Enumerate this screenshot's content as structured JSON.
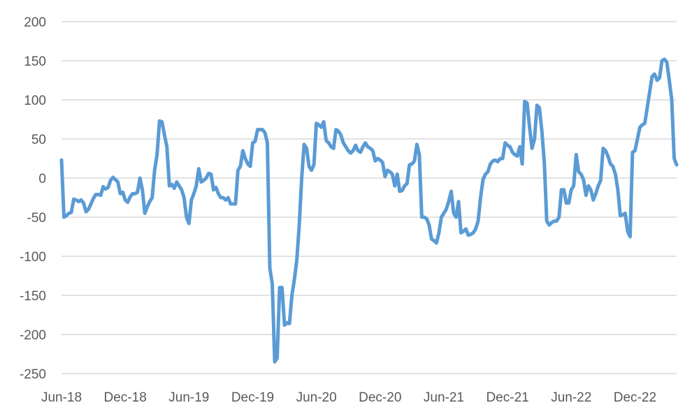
{
  "chart_data": {
    "type": "line",
    "title": "",
    "xlabel": "",
    "ylabel": "",
    "ylim": [
      -250,
      200
    ],
    "y_ticks": [
      "200",
      "150",
      "100",
      "50",
      "0",
      "-50",
      "-100",
      "-150",
      "-200",
      "-250"
    ],
    "y_tick_values": [
      200,
      150,
      100,
      50,
      0,
      -50,
      -100,
      -150,
      -200,
      -250
    ],
    "x_tick_labels": [
      "Jun-18",
      "Dec-18",
      "Jun-19",
      "Dec-19",
      "Jun-20",
      "Dec-20",
      "Jun-21",
      "Dec-21",
      "Jun-22",
      "Dec-22"
    ],
    "x_tick_index": [
      0,
      26,
      52,
      78,
      104,
      130,
      156,
      182,
      208,
      234
    ],
    "grid": true,
    "legend": "none",
    "series": [
      {
        "color": "#5b9bd5",
        "values": [
          23,
          -50,
          -48,
          -45,
          -44,
          -27,
          -28,
          -30,
          -28,
          -32,
          -43,
          -40,
          -33,
          -26,
          -21,
          -21,
          -22,
          -11,
          -14,
          -12,
          -3,
          1,
          -2,
          -5,
          -20,
          -18,
          -28,
          -31,
          -24,
          -20,
          -20,
          -18,
          0,
          -15,
          -45,
          -37,
          -30,
          -25,
          10,
          30,
          73,
          72,
          55,
          40,
          -10,
          -8,
          -13,
          -5,
          -10,
          -15,
          -25,
          -50,
          -58,
          -28,
          -20,
          -10,
          12,
          -5,
          -3,
          0,
          6,
          5,
          -15,
          -12,
          -20,
          -25,
          -25,
          -28,
          -25,
          -33,
          -33,
          -33,
          10,
          15,
          35,
          25,
          18,
          15,
          45,
          47,
          62,
          62,
          62,
          58,
          45,
          -115,
          -135,
          -235,
          -230,
          -140,
          -140,
          -188,
          -185,
          -186,
          -150,
          -130,
          -105,
          -60,
          0,
          43,
          38,
          15,
          10,
          17,
          70,
          68,
          65,
          72,
          48,
          45,
          40,
          38,
          62,
          60,
          55,
          45,
          40,
          35,
          32,
          35,
          42,
          35,
          33,
          40,
          45,
          40,
          38,
          35,
          22,
          25,
          23,
          20,
          2,
          10,
          8,
          5,
          -10,
          5,
          -17,
          -16,
          -10,
          -7,
          17,
          18,
          22,
          43,
          30,
          -50,
          -50,
          -52,
          -60,
          -78,
          -80,
          -83,
          -70,
          -50,
          -45,
          -40,
          -30,
          -17,
          -45,
          -50,
          -30,
          -70,
          -68,
          -65,
          -73,
          -72,
          -70,
          -65,
          -55,
          -25,
          -2,
          5,
          8,
          18,
          22,
          23,
          21,
          25,
          25,
          45,
          42,
          40,
          33,
          30,
          28,
          40,
          18,
          98,
          96,
          65,
          38,
          50,
          93,
          90,
          60,
          20,
          -55,
          -60,
          -57,
          -55,
          -55,
          -50,
          -15,
          -15,
          -32,
          -32,
          -15,
          -10,
          30,
          8,
          5,
          -2,
          -22,
          -10,
          -15,
          -28,
          -20,
          -10,
          -3,
          38,
          35,
          28,
          18,
          15,
          5,
          -15,
          -48,
          -47,
          -45,
          -68,
          -75,
          33,
          35,
          50,
          65,
          68,
          70,
          90,
          110,
          130,
          133,
          125,
          128,
          150,
          152,
          148,
          125,
          100,
          25,
          17
        ]
      }
    ]
  }
}
